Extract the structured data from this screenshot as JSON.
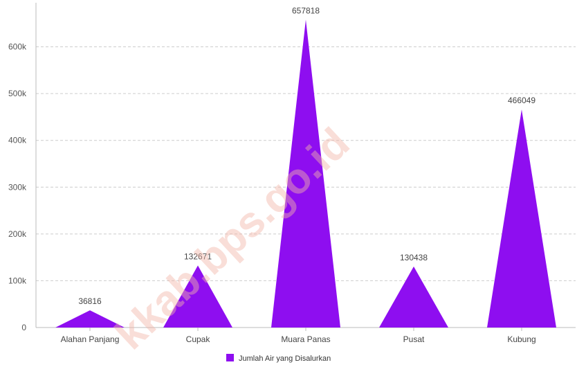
{
  "chart_data": {
    "type": "triangle-bar",
    "categories": [
      "Alahan Panjang",
      "Cupak",
      "Muara Panas",
      "Pusat",
      "Kubung"
    ],
    "series": [
      {
        "name": "Jumlah Air yang Disalurkan",
        "values": [
          36816,
          132671,
          657818,
          130438,
          466049
        ],
        "data_labels": [
          "36816",
          "132671",
          "657818",
          "130438",
          "466049"
        ]
      }
    ],
    "y_ticks": [
      0,
      100000,
      200000,
      300000,
      400000,
      500000,
      600000
    ],
    "y_tick_labels": [
      "0",
      "100k",
      "200k",
      "300k",
      "400k",
      "500k",
      "600k"
    ],
    "ylim": [
      0,
      700000
    ],
    "grid": true,
    "legend_position": "bottom-center",
    "colors": {
      "series": "#8e0ef0",
      "grid": "#cccccc",
      "axis": "#bbbbbb"
    }
  },
  "watermark": "kkab.bps.go.id"
}
